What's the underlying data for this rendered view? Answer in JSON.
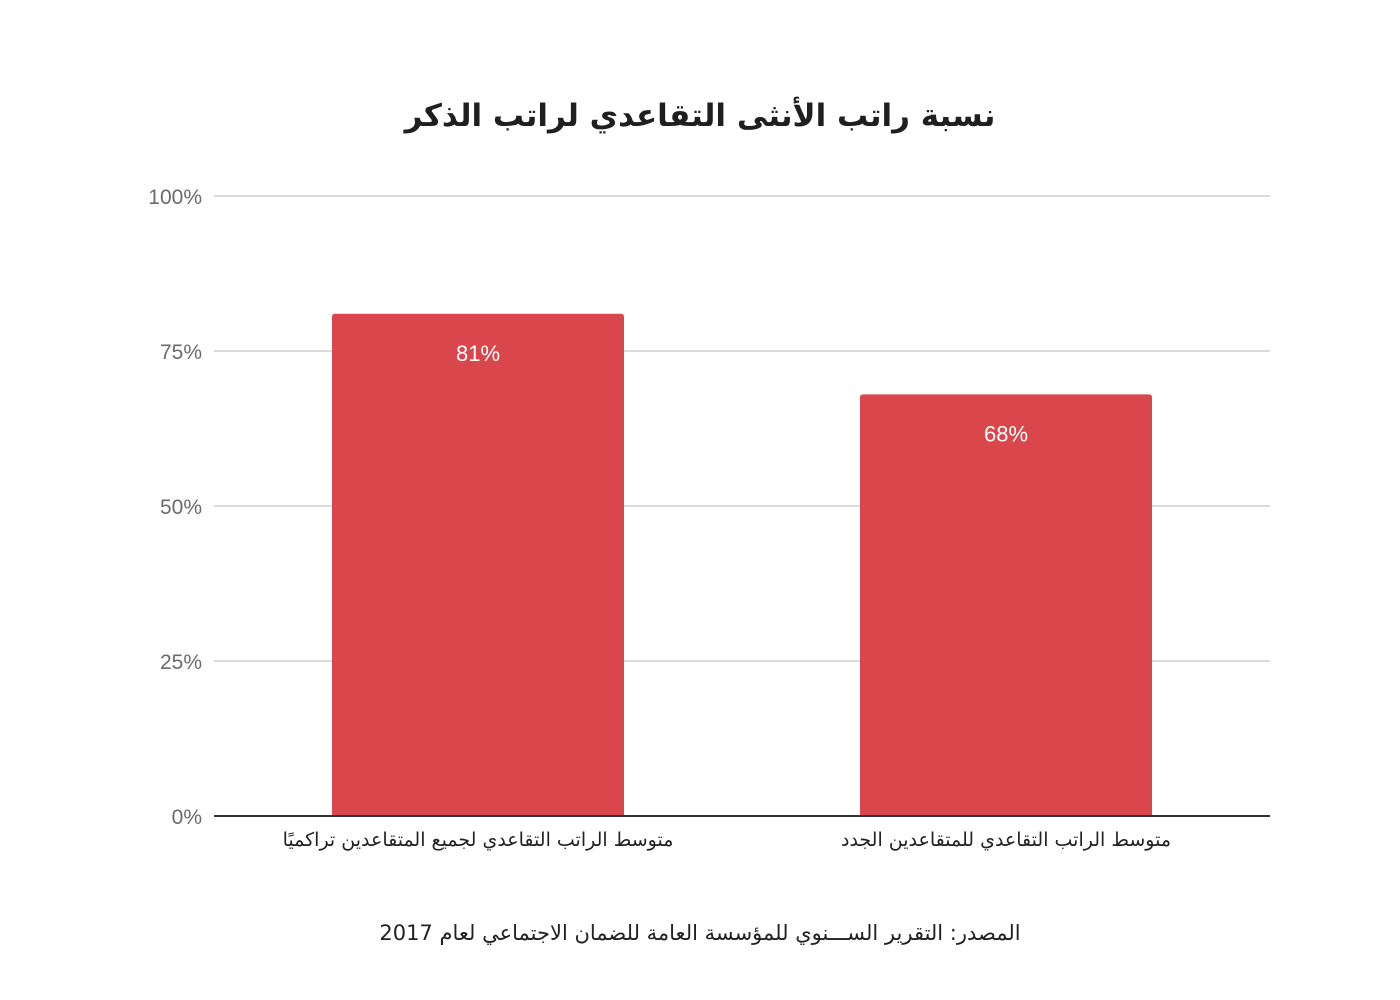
{
  "chart_data": {
    "type": "bar",
    "title": "نسبة راتب الأنثى التقاعدي لراتب الذكر",
    "categories": [
      "متوسط الراتب التقاعدي لجميع المتقاعدين تراكميًا",
      "متوسط الراتب التقاعدي للمتقاعدين الجدد"
    ],
    "values": [
      81,
      68
    ],
    "data_labels": [
      "81%",
      "68%"
    ],
    "y_ticks": [
      0,
      25,
      50,
      75,
      100
    ],
    "y_tick_labels": [
      "0%",
      "25%",
      "50%",
      "75%",
      "100%"
    ],
    "ylim": [
      0,
      100
    ],
    "grid": true,
    "bar_color": "#d9474d",
    "source": "المصدر: التقرير الســـنوي للمؤسسة العامة للضمان الاجتماعي لعام 2017"
  }
}
